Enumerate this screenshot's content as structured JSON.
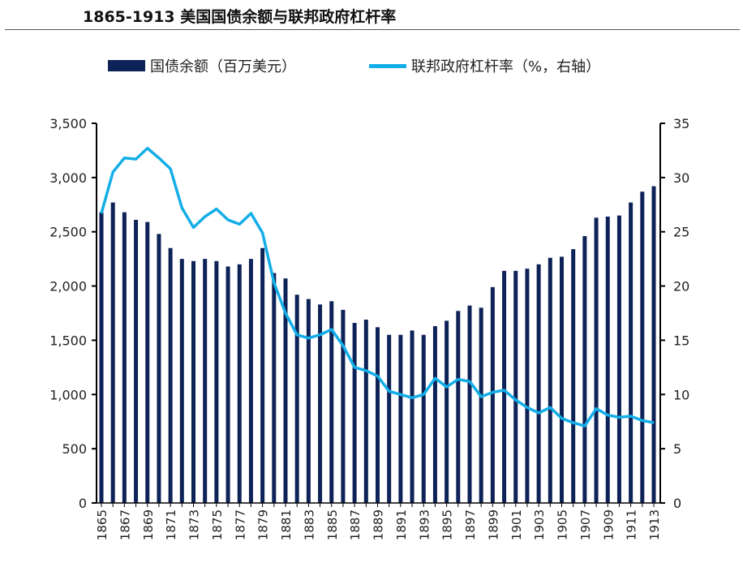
{
  "chart_data": {
    "type": "bar+line",
    "title": "1865-1913  美国国债余额与联邦政府杠杆率",
    "legend": "top",
    "x": [
      1865,
      1866,
      1867,
      1868,
      1869,
      1870,
      1871,
      1872,
      1873,
      1874,
      1875,
      1876,
      1877,
      1878,
      1879,
      1880,
      1881,
      1882,
      1883,
      1884,
      1885,
      1886,
      1887,
      1888,
      1889,
      1890,
      1891,
      1892,
      1893,
      1894,
      1895,
      1896,
      1897,
      1898,
      1899,
      1900,
      1901,
      1902,
      1903,
      1904,
      1905,
      1906,
      1907,
      1908,
      1909,
      1910,
      1911,
      1912,
      1913
    ],
    "x_tick_labels": [
      "1865",
      "1867",
      "1869",
      "1871",
      "1873",
      "1875",
      "1877",
      "1879",
      "1881",
      "1883",
      "1885",
      "1887",
      "1889",
      "1891",
      "1893",
      "1895",
      "1897",
      "1899",
      "1901",
      "1903",
      "1905",
      "1907",
      "1909",
      "1911",
      "1913"
    ],
    "series": [
      {
        "name": "国债余额（百万美元）",
        "type": "bar",
        "axis": "left",
        "color": "#0d2257",
        "values": [
          2680,
          2770,
          2680,
          2610,
          2590,
          2480,
          2350,
          2250,
          2230,
          2250,
          2230,
          2180,
          2200,
          2250,
          2350,
          2120,
          2070,
          1920,
          1880,
          1830,
          1860,
          1780,
          1660,
          1690,
          1620,
          1550,
          1550,
          1590,
          1550,
          1630,
          1680,
          1770,
          1820,
          1800,
          1990,
          2140,
          2140,
          2160,
          2200,
          2260,
          2270,
          2340,
          2460,
          2630,
          2640,
          2650,
          2770,
          2870,
          2920
        ]
      },
      {
        "name": "联邦政府杠杆率（%，右轴）",
        "type": "line",
        "axis": "right",
        "color": "#13aee8",
        "values": [
          26.7,
          30.5,
          31.8,
          31.7,
          32.7,
          31.8,
          30.8,
          27.2,
          25.4,
          26.4,
          27.1,
          26.1,
          25.7,
          26.7,
          24.9,
          20.3,
          17.5,
          15.5,
          15.2,
          15.5,
          16.0,
          14.5,
          12.5,
          12.2,
          11.7,
          10.3,
          10.0,
          9.7,
          10.0,
          11.5,
          10.7,
          11.4,
          11.2,
          9.8,
          10.2,
          10.4,
          9.5,
          8.8,
          8.3,
          8.8,
          7.8,
          7.4,
          7.1,
          8.7,
          8.1,
          7.9,
          8.0,
          7.6,
          7.4
        ]
      }
    ],
    "ylim_left": [
      0,
      3500
    ],
    "yticks_left": [
      "0",
      "500",
      "1,000",
      "1,500",
      "2,000",
      "2,500",
      "3,000",
      "3,500"
    ],
    "ylim_right": [
      0,
      35
    ],
    "yticks_right": [
      "0",
      "5",
      "10",
      "15",
      "20",
      "25",
      "30",
      "35"
    ],
    "grid": false
  }
}
